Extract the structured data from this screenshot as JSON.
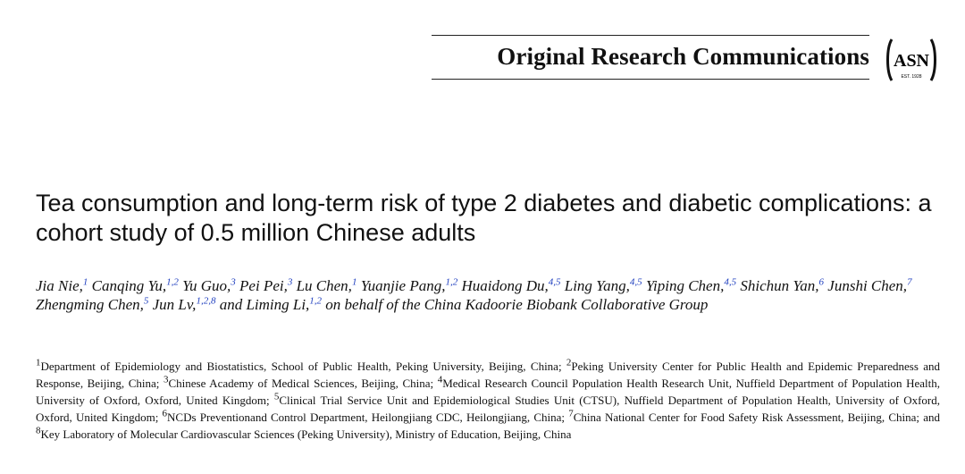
{
  "header": {
    "section_label": "Original Research Communications",
    "logo": {
      "text": "ASN",
      "est": "EST. 1928",
      "icon": "asn-logo-icon"
    }
  },
  "article": {
    "title": "Tea consumption and long-term risk of type 2 diabetes and diabetic complications: a cohort study of 0.5 million Chinese adults",
    "authors": [
      {
        "name": "Jia Nie,",
        "aff": "1"
      },
      {
        "name": "Canqing Yu,",
        "aff": "1,2"
      },
      {
        "name": "Yu Guo,",
        "aff": "3"
      },
      {
        "name": "Pei Pei,",
        "aff": "3"
      },
      {
        "name": "Lu Chen,",
        "aff": "1"
      },
      {
        "name": "Yuanjie Pang,",
        "aff": "1,2"
      },
      {
        "name": "Huaidong Du,",
        "aff": "4,5"
      },
      {
        "name": "Ling Yang,",
        "aff": "4,5"
      },
      {
        "name": "Yiping Chen,",
        "aff": "4,5"
      },
      {
        "name": "Shichun Yan,",
        "aff": "6"
      },
      {
        "name": "Junshi Chen,",
        "aff": "7"
      },
      {
        "name": "Zhengming Chen,",
        "aff": "5"
      },
      {
        "name": "Jun Lv,",
        "aff": "1,2,8"
      },
      {
        "name": "and Liming Li,",
        "aff": "1,2"
      }
    ],
    "authors_suffix": "on behalf of the China Kadoorie Biobank Collaborative Group",
    "affiliations": [
      {
        "num": "1",
        "text": "Department of Epidemiology and Biostatistics, School of Public Health, Peking University, Beijing, China; "
      },
      {
        "num": "2",
        "text": "Peking University Center for Public Health and Epidemic Preparedness and Response, Beijing, China; "
      },
      {
        "num": "3",
        "text": "Chinese Academy of Medical Sciences, Beijing, China; "
      },
      {
        "num": "4",
        "text": "Medical Research Council Population Health Research Unit, Nuffield Department of Population Health, University of Oxford, Oxford, United Kingdom; "
      },
      {
        "num": "5",
        "text": "Clinical Trial Service Unit and Epidemiological Studies Unit (CTSU), Nuffield Department of Population Health, University of Oxford, Oxford, United Kingdom; "
      },
      {
        "num": "6",
        "text": "NCDs Preventionand Control Department, Heilongjiang CDC, Heilongjiang, China; "
      },
      {
        "num": "7",
        "text": "China National Center for Food Safety Risk Assessment, Beijing, China; and "
      },
      {
        "num": "8",
        "text": "Key Laboratory of Molecular Cardiovascular Sciences (Peking University), Ministry of Education, Beijing, China"
      }
    ]
  }
}
